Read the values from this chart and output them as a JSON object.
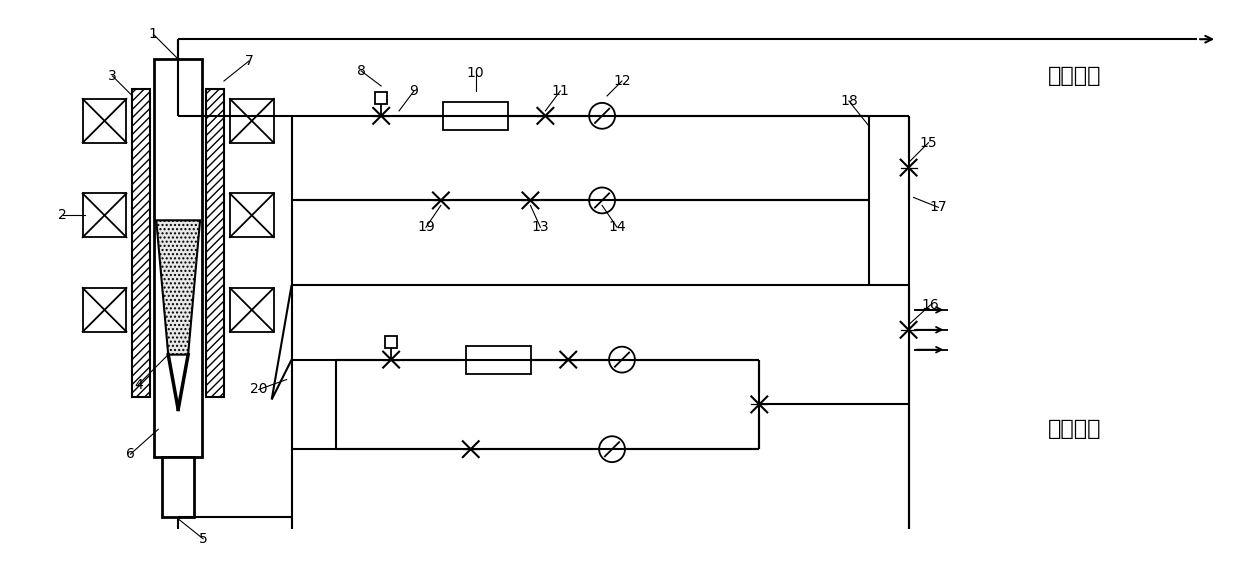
{
  "bg_color": "#ffffff",
  "lw": 1.3,
  "fig_width": 12.39,
  "fig_height": 5.67,
  "outlet_text": "出口气体",
  "inlet_text": "入口气体",
  "font_size_label": 10,
  "font_size_text": 16
}
